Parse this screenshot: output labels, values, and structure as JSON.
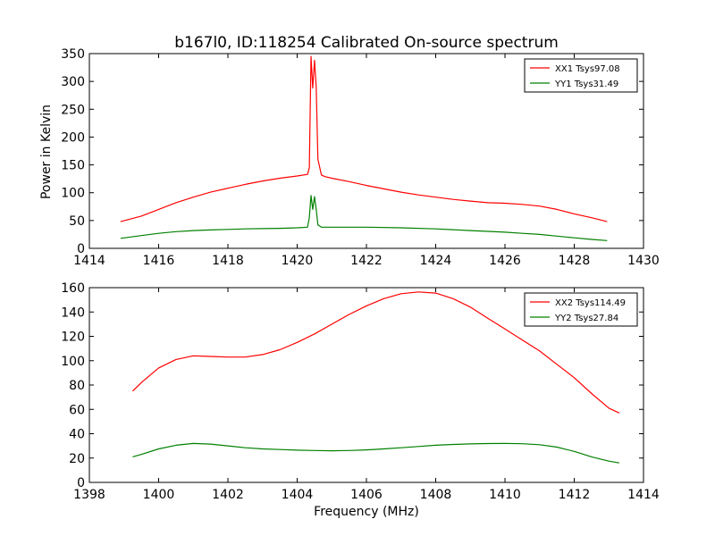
{
  "figure": {
    "title": "b167l0, ID:118254 Calibrated On-source spectrum",
    "ylabel": "Power in Kelvin",
    "xlabel": "Frequency (MHz)"
  },
  "chart_data": [
    {
      "type": "line",
      "title": "b167l0, ID:118254 Calibrated On-source spectrum",
      "xlabel": "",
      "ylabel": "Power in Kelvin",
      "xlim": [
        1414,
        1430
      ],
      "ylim": [
        0,
        350
      ],
      "xticks": [
        "1414",
        "1416",
        "1418",
        "1420",
        "1422",
        "1424",
        "1426",
        "1428",
        "1430"
      ],
      "yticks": [
        "0",
        "50",
        "100",
        "150",
        "200",
        "250",
        "300",
        "350"
      ],
      "legend": "top-right",
      "grid": false,
      "series": [
        {
          "name": "XX1 Tsys97.08",
          "color": "#ff0000",
          "x": [
            1414.9,
            1415.5,
            1416.0,
            1416.5,
            1417.0,
            1417.5,
            1418.0,
            1418.5,
            1419.0,
            1419.5,
            1420.0,
            1420.3,
            1420.35,
            1420.4,
            1420.45,
            1420.5,
            1420.55,
            1420.6,
            1420.7,
            1420.8,
            1421.0,
            1421.5,
            1422.0,
            1422.5,
            1423.0,
            1423.5,
            1424.0,
            1424.5,
            1425.0,
            1425.5,
            1426.0,
            1426.5,
            1427.0,
            1427.5,
            1428.0,
            1428.5,
            1428.95
          ],
          "y": [
            48,
            58,
            70,
            82,
            92,
            101,
            108,
            115,
            121,
            126,
            130,
            133,
            145,
            345,
            288,
            338,
            290,
            160,
            132,
            129,
            126,
            120,
            113,
            107,
            101,
            96,
            92,
            88,
            85,
            82,
            81,
            79,
            76,
            70,
            62,
            55,
            48
          ]
        },
        {
          "name": "YY1 Tsys31.49",
          "color": "#008000",
          "x": [
            1414.9,
            1415.5,
            1416.0,
            1416.5,
            1417.0,
            1417.5,
            1418.0,
            1418.5,
            1419.0,
            1419.5,
            1420.0,
            1420.3,
            1420.35,
            1420.4,
            1420.45,
            1420.5,
            1420.55,
            1420.6,
            1420.7,
            1421.0,
            1422.0,
            1423.0,
            1424.0,
            1425.0,
            1426.0,
            1426.5,
            1427.0,
            1427.5,
            1428.0,
            1428.5,
            1428.95
          ],
          "y": [
            18,
            23,
            27,
            30,
            32,
            33,
            34,
            35,
            35.5,
            36,
            37,
            38,
            55,
            95,
            70,
            93,
            70,
            42,
            38,
            38,
            38,
            37,
            35,
            32,
            29,
            27,
            25,
            22,
            19,
            16,
            14
          ]
        }
      ]
    },
    {
      "type": "line",
      "title": "",
      "xlabel": "Frequency (MHz)",
      "ylabel": "",
      "xlim": [
        1398,
        1414
      ],
      "ylim": [
        0,
        160
      ],
      "xticks": [
        "1398",
        "1400",
        "1402",
        "1404",
        "1406",
        "1408",
        "1410",
        "1412",
        "1414"
      ],
      "yticks": [
        "0",
        "20",
        "40",
        "60",
        "80",
        "100",
        "120",
        "140",
        "160"
      ],
      "legend": "top-right",
      "grid": false,
      "series": [
        {
          "name": "XX2 Tsys114.49",
          "color": "#ff0000",
          "x": [
            1399.25,
            1399.5,
            1399.75,
            1400.0,
            1400.5,
            1401.0,
            1401.5,
            1402.0,
            1402.5,
            1403.0,
            1403.5,
            1404.0,
            1404.5,
            1405.0,
            1405.5,
            1406.0,
            1406.5,
            1407.0,
            1407.5,
            1408.0,
            1408.5,
            1409.0,
            1409.5,
            1410.0,
            1410.5,
            1411.0,
            1411.5,
            1412.0,
            1412.5,
            1413.0,
            1413.3
          ],
          "y": [
            75,
            82,
            88,
            94,
            101,
            104,
            103.5,
            103,
            103,
            105,
            109,
            115,
            122,
            130,
            138,
            145,
            151,
            155,
            156.5,
            155.5,
            151,
            144,
            135,
            126,
            117,
            108,
            97,
            86,
            73,
            61,
            57
          ]
        },
        {
          "name": "YY2 Tsys27.84",
          "color": "#008000",
          "x": [
            1399.25,
            1399.5,
            1400.0,
            1400.5,
            1401.0,
            1401.5,
            1402.0,
            1402.5,
            1403.0,
            1403.5,
            1404.0,
            1404.5,
            1405.0,
            1405.5,
            1406.0,
            1406.5,
            1407.0,
            1407.5,
            1408.0,
            1408.5,
            1409.0,
            1409.5,
            1410.0,
            1410.5,
            1411.0,
            1411.5,
            1412.0,
            1412.5,
            1413.0,
            1413.3
          ],
          "y": [
            21,
            23,
            27.5,
            30.5,
            32,
            31.5,
            30,
            28.5,
            27.5,
            27,
            26.5,
            26.2,
            26,
            26.2,
            26.7,
            27.5,
            28.5,
            29.5,
            30.5,
            31.2,
            31.6,
            31.9,
            32,
            31.8,
            31,
            29,
            25.5,
            21,
            17.5,
            16
          ]
        }
      ]
    }
  ]
}
